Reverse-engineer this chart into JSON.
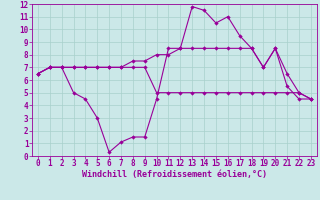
{
  "xlabel": "Windchill (Refroidissement éolien,°C)",
  "xlim": [
    -0.5,
    23.5
  ],
  "ylim": [
    0,
    12
  ],
  "xtick_vals": [
    0,
    1,
    2,
    3,
    4,
    5,
    6,
    7,
    8,
    9,
    10,
    11,
    12,
    13,
    14,
    15,
    16,
    17,
    18,
    19,
    20,
    21,
    22,
    23
  ],
  "ytick_vals": [
    0,
    1,
    2,
    3,
    4,
    5,
    6,
    7,
    8,
    9,
    10,
    11,
    12
  ],
  "bg_color": "#cbe8e8",
  "grid_color": "#a8d0cc",
  "line_color": "#990099",
  "line1_x": [
    0,
    1,
    2,
    3,
    4,
    5,
    6,
    7,
    8,
    9,
    10,
    11,
    12,
    13,
    14,
    15,
    16,
    17,
    18,
    19,
    20,
    21,
    22,
    23
  ],
  "line1_y": [
    6.5,
    7.0,
    7.0,
    5.0,
    4.5,
    3.0,
    0.3,
    1.1,
    1.5,
    1.5,
    4.5,
    8.5,
    8.5,
    11.8,
    11.5,
    10.5,
    11.0,
    9.5,
    8.5,
    7.0,
    8.5,
    5.5,
    4.5,
    4.5
  ],
  "line2_x": [
    0,
    1,
    2,
    3,
    4,
    5,
    6,
    7,
    8,
    9,
    10,
    11,
    12,
    13,
    14,
    15,
    16,
    17,
    18,
    19,
    20,
    21,
    22,
    23
  ],
  "line2_y": [
    6.5,
    7.0,
    7.0,
    7.0,
    7.0,
    7.0,
    7.0,
    7.0,
    7.0,
    7.0,
    5.0,
    5.0,
    5.0,
    5.0,
    5.0,
    5.0,
    5.0,
    5.0,
    5.0,
    5.0,
    5.0,
    5.0,
    5.0,
    4.5
  ],
  "line3_x": [
    0,
    1,
    2,
    3,
    4,
    5,
    6,
    7,
    8,
    9,
    10,
    11,
    12,
    13,
    14,
    15,
    16,
    17,
    18,
    19,
    20,
    21,
    22,
    23
  ],
  "line3_y": [
    6.5,
    7.0,
    7.0,
    7.0,
    7.0,
    7.0,
    7.0,
    7.0,
    7.5,
    7.5,
    8.0,
    8.0,
    8.5,
    8.5,
    8.5,
    8.5,
    8.5,
    8.5,
    8.5,
    7.0,
    8.5,
    6.5,
    5.0,
    4.5
  ],
  "tick_fontsize": 5.5,
  "label_fontsize": 6.0,
  "lw": 0.8,
  "ms": 2.2
}
